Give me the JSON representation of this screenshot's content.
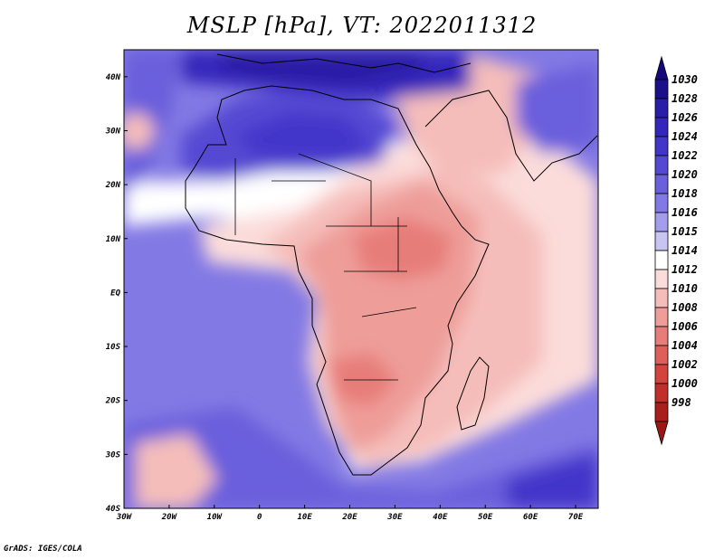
{
  "title": "MSLP [hPa], VT: 2022011312",
  "credit": "GrADS: IGES/COLA",
  "map": {
    "variable": "MSLP",
    "units": "hPa",
    "valid_time": "2022011312",
    "lon_range": [
      -30,
      75
    ],
    "lat_range": [
      -40,
      45
    ],
    "lon_labels": [
      {
        "lon": -30,
        "label": "30W"
      },
      {
        "lon": -20,
        "label": "20W"
      },
      {
        "lon": -10,
        "label": "10W"
      },
      {
        "lon": 0,
        "label": "0"
      },
      {
        "lon": 10,
        "label": "10E"
      },
      {
        "lon": 20,
        "label": "20E"
      },
      {
        "lon": 30,
        "label": "30E"
      },
      {
        "lon": 40,
        "label": "40E"
      },
      {
        "lon": 50,
        "label": "50E"
      },
      {
        "lon": 60,
        "label": "60E"
      },
      {
        "lon": 70,
        "label": "70E"
      }
    ],
    "lat_labels": [
      {
        "lat": 40,
        "label": "40N"
      },
      {
        "lat": 30,
        "label": "30N"
      },
      {
        "lat": 20,
        "label": "20N"
      },
      {
        "lat": 10,
        "label": "10N"
      },
      {
        "lat": 0,
        "label": "EQ"
      },
      {
        "lat": -10,
        "label": "10S"
      },
      {
        "lat": -20,
        "label": "20S"
      },
      {
        "lat": -30,
        "label": "30S"
      },
      {
        "lat": -40,
        "label": "40S"
      }
    ]
  },
  "colorbar": {
    "levels": [
      {
        "label": "1030",
        "color": "#1b0f8a"
      },
      {
        "label": "1028",
        "color": "#2a1da6"
      },
      {
        "label": "1026",
        "color": "#3426bb"
      },
      {
        "label": "1024",
        "color": "#4236c9"
      },
      {
        "label": "1022",
        "color": "#5549d3"
      },
      {
        "label": "1020",
        "color": "#6a5fdc"
      },
      {
        "label": "1018",
        "color": "#8379e4"
      },
      {
        "label": "1016",
        "color": "#a39deb"
      },
      {
        "label": "1015",
        "color": "#c8c5f3"
      },
      {
        "label": "1014",
        "color": "#ffffff"
      },
      {
        "label": "1012",
        "color": "#fbdcda"
      },
      {
        "label": "1010",
        "color": "#f5bdba"
      },
      {
        "label": "1008",
        "color": "#ee9d99"
      },
      {
        "label": "1006",
        "color": "#e77d79"
      },
      {
        "label": "1004",
        "color": "#e05e5a"
      },
      {
        "label": "1002",
        "color": "#d4443f"
      },
      {
        "label": "1000",
        "color": "#c12f2a"
      },
      {
        "label": "998",
        "color": "#a81f1b"
      }
    ],
    "top_arrow_color": "#15097a",
    "bottom_arrow_color": "#9c1713"
  }
}
